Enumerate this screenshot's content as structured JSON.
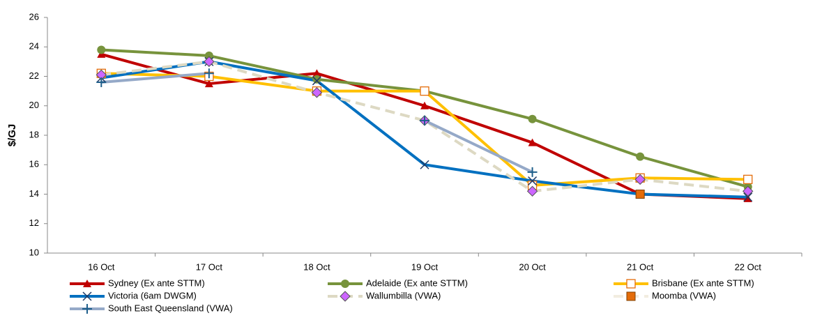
{
  "chart_data": {
    "type": "line",
    "y_label": "$/GJ",
    "categories": [
      "16 Oct",
      "17 Oct",
      "18 Oct",
      "19 Oct",
      "20 Oct",
      "21 Oct",
      "22 Oct"
    ],
    "ylim": [
      10,
      26
    ],
    "yticks": [
      10,
      12,
      14,
      16,
      18,
      20,
      22,
      24,
      26
    ],
    "grid": false,
    "legend": "bottom",
    "series": [
      {
        "name": "Sydney (Ex ante STTM)",
        "color": "#c00000",
        "marker": "triangle",
        "values": [
          23.5,
          21.5,
          22.2,
          20.0,
          17.5,
          14.0,
          13.7
        ]
      },
      {
        "name": "Adelaide (Ex ante STTM)",
        "color": "#77933c",
        "marker": "circle",
        "values": [
          23.8,
          23.4,
          21.8,
          21.0,
          19.1,
          16.55,
          14.5
        ]
      },
      {
        "name": "Brisbane (Ex ante STTM)",
        "color": "#ffc000",
        "marker": "open-square",
        "marker_color": "#e46c0a",
        "values": [
          22.2,
          22.0,
          21.0,
          21.0,
          14.6,
          15.1,
          15.0
        ]
      },
      {
        "name": "Victoria (6am DWGM)",
        "color": "#0070c0",
        "marker": "x",
        "marker_color": "#1f3864",
        "values": [
          21.9,
          23.0,
          21.7,
          16.0,
          14.9,
          14.0,
          13.8
        ]
      },
      {
        "name": "Wallumbilla (VWA)",
        "color": "#ddd9c3",
        "dash": true,
        "marker": "diamond",
        "marker_color": "#cc66ff",
        "values": [
          22.1,
          23.0,
          20.9,
          19.0,
          14.2,
          15.0,
          14.2
        ]
      },
      {
        "name": "Moomba (VWA)",
        "color": "#f2ede0",
        "dash": true,
        "marker": "square",
        "marker_color": "#e46c0a",
        "values": [
          null,
          null,
          null,
          null,
          null,
          14.0,
          null
        ]
      },
      {
        "name": "South East Queensland (VWA)",
        "color": "#95a9c8",
        "marker": "plus",
        "marker_color": "#1f5f8b",
        "values": [
          21.6,
          22.2,
          null,
          19.0,
          15.5,
          null,
          null
        ]
      }
    ]
  }
}
